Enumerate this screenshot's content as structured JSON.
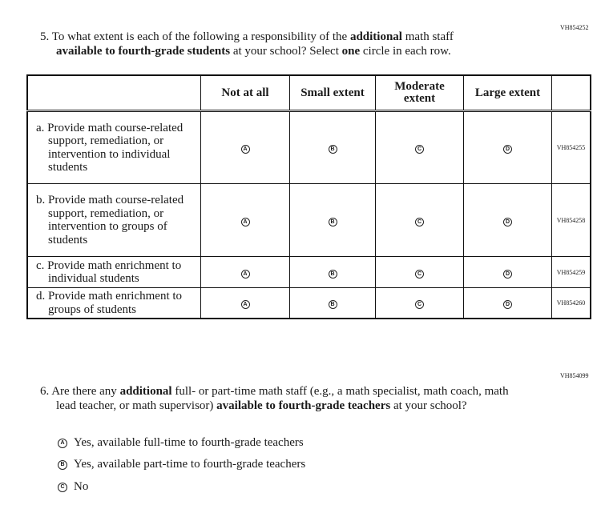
{
  "q5": {
    "code": "VH854252",
    "number": "5.",
    "text_parts": [
      "To what extent is each of the following a responsibility of the ",
      "additional",
      " math staff ",
      "available to fourth-grade students",
      " at your school? Select ",
      "one",
      " circle in each row."
    ],
    "columns": [
      "Not at all",
      "Small extent",
      "Moderate extent",
      "Large extent"
    ],
    "bubbles": [
      "A",
      "B",
      "C",
      "D"
    ],
    "rows": [
      {
        "letter": "a.",
        "text": "Provide math course-related support, remediation, or intervention to individual students",
        "code": "VH854255"
      },
      {
        "letter": "b.",
        "text": "Provide math course-related support, remediation, or intervention to groups of students",
        "code": "VH854258"
      },
      {
        "letter": "c.",
        "text": "Provide math enrichment to individual students",
        "code": "VH854259"
      },
      {
        "letter": "d.",
        "text": "Provide math enrichment to groups of students",
        "code": "VH854260"
      }
    ]
  },
  "q6": {
    "code": "VH854099",
    "number": "6.",
    "text_parts": [
      "Are there any ",
      "additional",
      " full- or part-time math staff (e.g., a math specialist, math coach, math lead teacher, or math supervisor) ",
      "available to fourth-grade teachers",
      " at your school?"
    ],
    "options": [
      {
        "bubble": "A",
        "label": "Yes, available full-time to fourth-grade teachers"
      },
      {
        "bubble": "B",
        "label": "Yes, available part-time to fourth-grade teachers"
      },
      {
        "bubble": "C",
        "label": "No"
      }
    ]
  }
}
